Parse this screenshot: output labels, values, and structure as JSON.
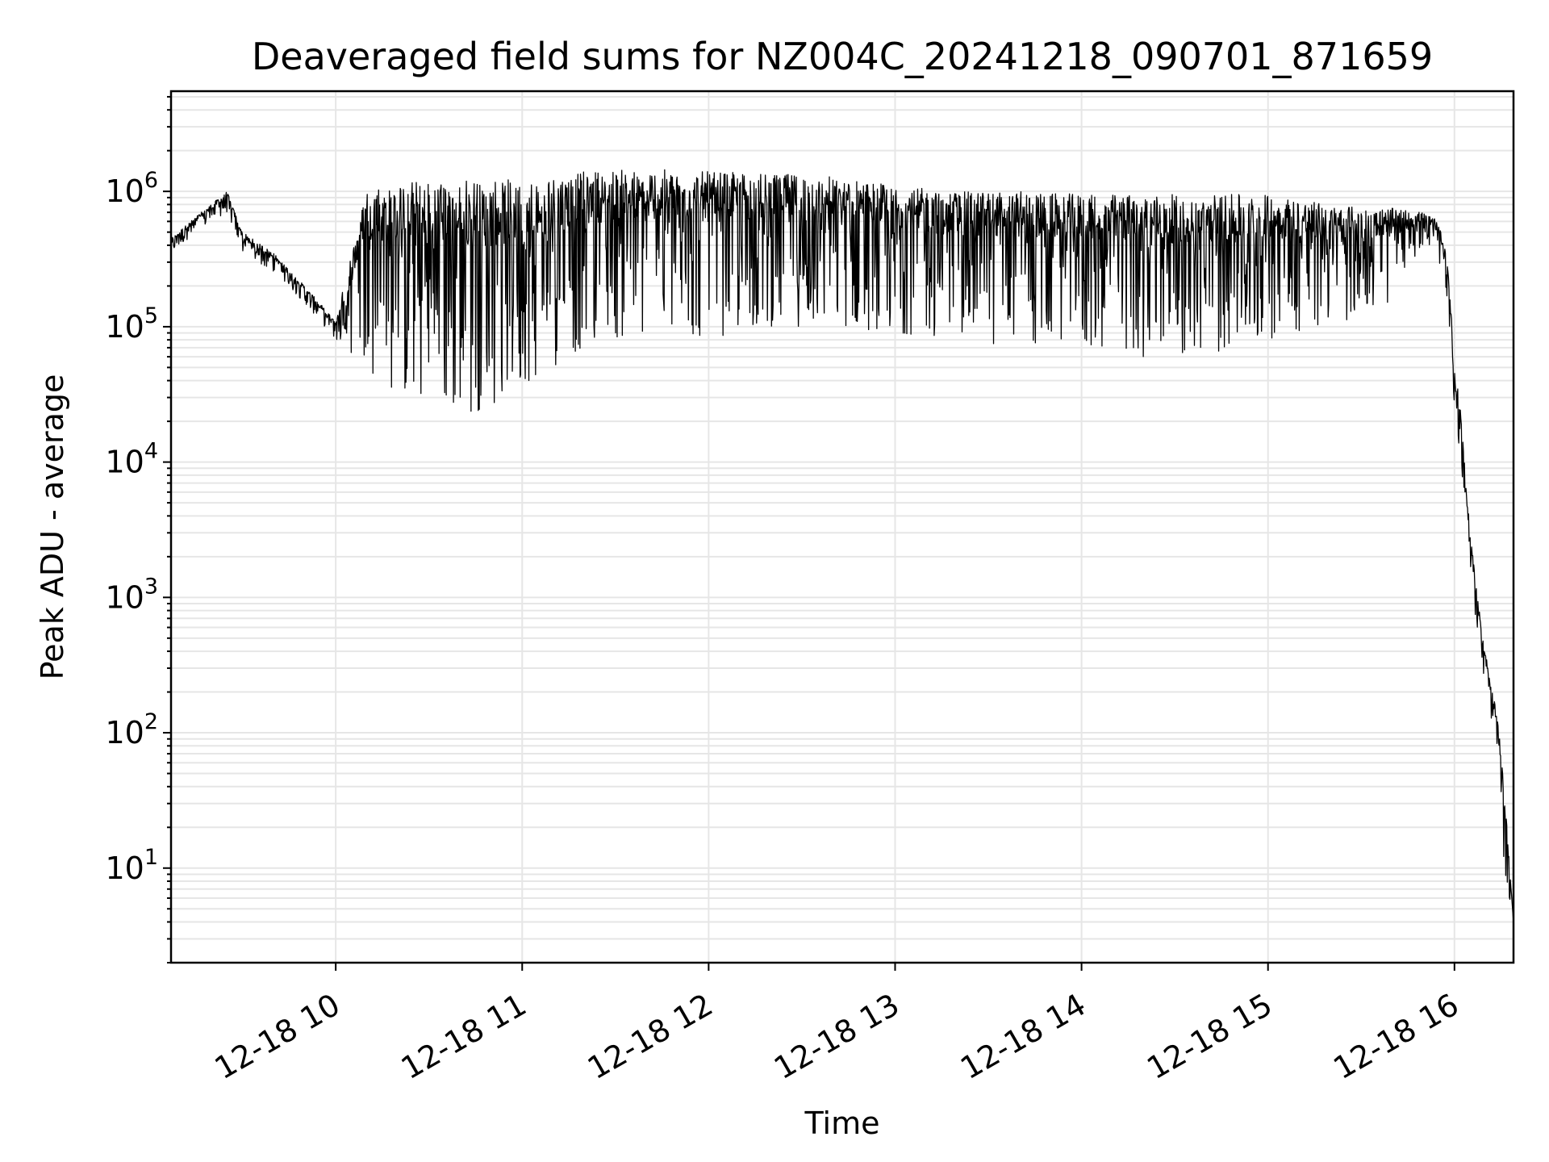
{
  "chart_data": {
    "type": "line",
    "title": "Deaveraged field sums for NZ004C_20241218_090701_871659",
    "xlabel": "Time",
    "ylabel": "Peak ADU - average",
    "yscale": "log",
    "ylim": [
      2,
      5500000
    ],
    "xlim": [
      "2024-12-18 09:07",
      "2024-12-18 16:19"
    ],
    "grid": true,
    "legend": "none",
    "colors": {
      "line": "#000000",
      "grid": "#e6e6e6"
    },
    "x_ticks": [
      {
        "label": "12-18 10",
        "t": "2024-12-18 10:00"
      },
      {
        "label": "12-18 11",
        "t": "2024-12-18 11:00"
      },
      {
        "label": "12-18 12",
        "t": "2024-12-18 12:00"
      },
      {
        "label": "12-18 13",
        "t": "2024-12-18 13:00"
      },
      {
        "label": "12-18 14",
        "t": "2024-12-18 14:00"
      },
      {
        "label": "12-18 15",
        "t": "2024-12-18 15:00"
      },
      {
        "label": "12-18 16",
        "t": "2024-12-18 16:00"
      }
    ],
    "y_ticks": [
      {
        "base": "10",
        "exp": "1",
        "value": 10
      },
      {
        "base": "10",
        "exp": "2",
        "value": 100
      },
      {
        "base": "10",
        "exp": "3",
        "value": 1000
      },
      {
        "base": "10",
        "exp": "4",
        "value": 10000
      },
      {
        "base": "10",
        "exp": "5",
        "value": 100000
      },
      {
        "base": "10",
        "exp": "6",
        "value": 1000000
      }
    ],
    "series": [
      {
        "envelope": {
          "note_style": "noisy line; upper and lower envelopes of the plotted values",
          "time": [
            "2024-12-18 09:07",
            "2024-12-18 09:15",
            "2024-12-18 09:25",
            "2024-12-18 09:30",
            "2024-12-18 09:40",
            "2024-12-18 09:50",
            "2024-12-18 10:00",
            "2024-12-18 10:10",
            "2024-12-18 10:20",
            "2024-12-18 10:30",
            "2024-12-18 10:40",
            "2024-12-18 10:50",
            "2024-12-18 11:00",
            "2024-12-18 11:10",
            "2024-12-18 11:20",
            "2024-12-18 11:30",
            "2024-12-18 11:45",
            "2024-12-18 12:00",
            "2024-12-18 12:20",
            "2024-12-18 12:40",
            "2024-12-18 13:00",
            "2024-12-18 13:20",
            "2024-12-18 13:40",
            "2024-12-18 14:00",
            "2024-12-18 14:20",
            "2024-12-18 14:40",
            "2024-12-18 15:00",
            "2024-12-18 15:20",
            "2024-12-18 15:40",
            "2024-12-18 15:50",
            "2024-12-18 15:55",
            "2024-12-18 15:58",
            "2024-12-18 16:00",
            "2024-12-18 16:02",
            "2024-12-18 16:05",
            "2024-12-18 16:08",
            "2024-12-18 16:11",
            "2024-12-18 16:14",
            "2024-12-18 16:16",
            "2024-12-18 16:19"
          ],
          "upper": [
            450000,
            650000,
            1000000,
            500000,
            350000,
            200000,
            110000,
            1100000,
            1200000,
            1200000,
            1250000,
            1250000,
            1200000,
            1300000,
            1400000,
            1450000,
            1450000,
            1400000,
            1350000,
            1300000,
            1100000,
            1000000,
            1000000,
            950000,
            950000,
            950000,
            950000,
            800000,
            750000,
            700000,
            600000,
            300000,
            50000,
            25000,
            3000,
            800,
            300,
            120,
            40,
            4
          ],
          "lower": [
            350000,
            500000,
            700000,
            350000,
            250000,
            150000,
            80000,
            50000,
            30000,
            25000,
            22000,
            25000,
            35000,
            50000,
            70000,
            80000,
            80000,
            80000,
            100000,
            100000,
            90000,
            80000,
            70000,
            70000,
            60000,
            60000,
            80000,
            100000,
            150000,
            400000,
            300000,
            150000,
            20000,
            10000,
            1500,
            400,
            150,
            60,
            10,
            4
          ]
        }
      }
    ],
    "annotations": []
  }
}
